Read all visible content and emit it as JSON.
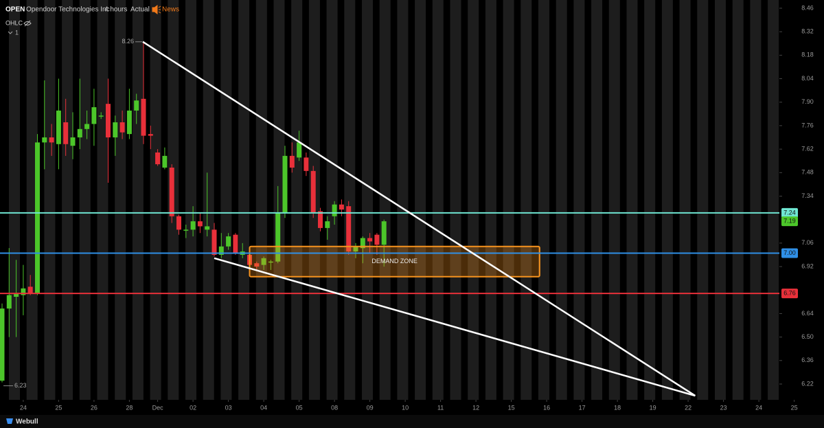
{
  "header": {
    "symbol": "OPEN",
    "name": "Opendoor Technologies Inc",
    "interval": "4 hours",
    "adjust": "Actual",
    "news": "News",
    "indicator": "OHLC",
    "indicator_count": 1,
    "brand": "Webull"
  },
  "chart_data": {
    "type": "candlestick",
    "up_color": "#4cc62a",
    "down_color": "#e8303a",
    "xlim": [
      -0.29,
      109.9
    ],
    "xticks": [
      {
        "value": 3,
        "label": "24"
      },
      {
        "value": 8,
        "label": "25"
      },
      {
        "value": 13,
        "label": "26"
      },
      {
        "value": 18,
        "label": "28"
      },
      {
        "value": 22,
        "label": "Dec"
      },
      {
        "value": 27,
        "label": "02"
      },
      {
        "value": 32,
        "label": "03"
      },
      {
        "value": 37,
        "label": "04"
      },
      {
        "value": 42,
        "label": "05"
      },
      {
        "value": 47,
        "label": "08"
      },
      {
        "value": 52,
        "label": "09"
      },
      {
        "value": 57,
        "label": "10"
      },
      {
        "value": 62,
        "label": "11"
      },
      {
        "value": 67,
        "label": "12"
      },
      {
        "value": 72,
        "label": "15"
      },
      {
        "value": 77,
        "label": "16"
      },
      {
        "value": 82,
        "label": "17"
      },
      {
        "value": 87,
        "label": "18"
      },
      {
        "value": 92,
        "label": "19"
      },
      {
        "value": 97,
        "label": "22"
      },
      {
        "value": 102,
        "label": "23"
      },
      {
        "value": 107,
        "label": "24"
      },
      {
        "value": 112,
        "label": "25"
      }
    ],
    "ylim": [
      6.134,
      8.509
    ],
    "yticks": [
      8.46,
      8.32,
      8.18,
      8.04,
      {
        "value": 7.9,
        "label": "7.90"
      },
      7.76,
      7.62,
      7.48,
      7.34,
      7.06,
      6.92,
      6.64,
      {
        "value": 6.5,
        "label": "6.50"
      },
      6.36,
      6.22
    ],
    "open": [
      6.24,
      6.67,
      6.74,
      6.75,
      6.8,
      6.76,
      7.66,
      7.69,
      7.65,
      7.78,
      7.64,
      7.69,
      7.74,
      7.77,
      7.82,
      7.89,
      7.69,
      7.78,
      7.71,
      7.85,
      7.92,
      7.71,
      7.6,
      7.51,
      7.51,
      7.22,
      7.14,
      7.14,
      7.19,
      7.14,
      7.14,
      6.99,
      7.04,
      7.11,
      6.99,
      6.99,
      6.94,
      6.93,
      6.95,
      6.95,
      7.24,
      7.58,
      7.57,
      7.57,
      7.49,
      7.25,
      7.15,
      7.22,
      7.29,
      7.28,
      7.01,
      7.03,
      7.09,
      7.11,
      7.05
    ],
    "high": [
      6.7,
      7.03,
      6.96,
      6.93,
      6.87,
      7.71,
      8.03,
      7.77,
      8.04,
      7.92,
      7.84,
      8.04,
      7.85,
      7.98,
      7.84,
      8.04,
      7.82,
      7.85,
      7.98,
      7.95,
      8.26,
      7.76,
      7.62,
      7.63,
      7.53,
      7.23,
      7.17,
      7.28,
      7.24,
      7.48,
      7.18,
      7.12,
      7.12,
      7.12,
      7.06,
      7.0,
      6.95,
      6.98,
      6.96,
      7.4,
      7.64,
      7.66,
      7.73,
      7.6,
      7.52,
      7.27,
      7.22,
      7.31,
      7.32,
      7.31,
      7.06,
      7.1,
      7.12,
      7.12,
      7.2
    ],
    "low": [
      6.23,
      6.5,
      6.5,
      6.63,
      6.75,
      6.75,
      7.5,
      7.58,
      7.5,
      7.58,
      7.56,
      7.62,
      7.68,
      7.64,
      7.8,
      7.42,
      7.58,
      7.68,
      7.68,
      7.77,
      7.65,
      7.62,
      7.52,
      7.5,
      7.18,
      7.11,
      7.09,
      7.1,
      7.12,
      7.1,
      6.98,
      6.97,
      7.02,
      6.99,
      6.97,
      6.91,
      6.9,
      6.9,
      6.9,
      6.94,
      7.21,
      7.48,
      7.55,
      7.46,
      7.21,
      7.13,
      7.08,
      7.17,
      7.22,
      6.99,
      6.97,
      6.94,
      7.0,
      6.99,
      6.92
    ],
    "close": [
      6.67,
      6.75,
      6.76,
      6.79,
      6.76,
      7.66,
      7.69,
      7.66,
      7.85,
      7.65,
      7.69,
      7.74,
      7.77,
      7.87,
      7.82,
      7.69,
      7.78,
      7.72,
      7.85,
      7.91,
      7.7,
      7.7,
      7.53,
      7.58,
      7.22,
      7.14,
      7.14,
      7.19,
      7.16,
      7.16,
      6.99,
      7.04,
      7.1,
      7.0,
      7.01,
      6.93,
      6.92,
      6.97,
      6.95,
      7.24,
      7.58,
      7.51,
      7.66,
      7.49,
      7.24,
      7.15,
      7.19,
      7.29,
      7.26,
      7.01,
      7.04,
      7.09,
      7.07,
      7.05,
      7.19
    ],
    "price_lines": [
      {
        "value": 7.24,
        "color": "#6fe6d2"
      },
      {
        "value": 7,
        "label": "7.00",
        "color": "#2f8fe6"
      },
      {
        "value": 6.76,
        "color": "#e8303a"
      }
    ],
    "zone": {
      "x": [
        35,
        76
      ],
      "y": [
        7.04,
        6.86
      ],
      "label": "DEMAND ZONE",
      "color": "#f7931e"
    },
    "trendlines": [
      {
        "x": [
          19.9,
          98
        ],
        "y": [
          8.26,
          6.15
        ]
      },
      {
        "x": [
          30,
          98
        ],
        "y": [
          6.97,
          6.15
        ]
      }
    ]
  }
}
